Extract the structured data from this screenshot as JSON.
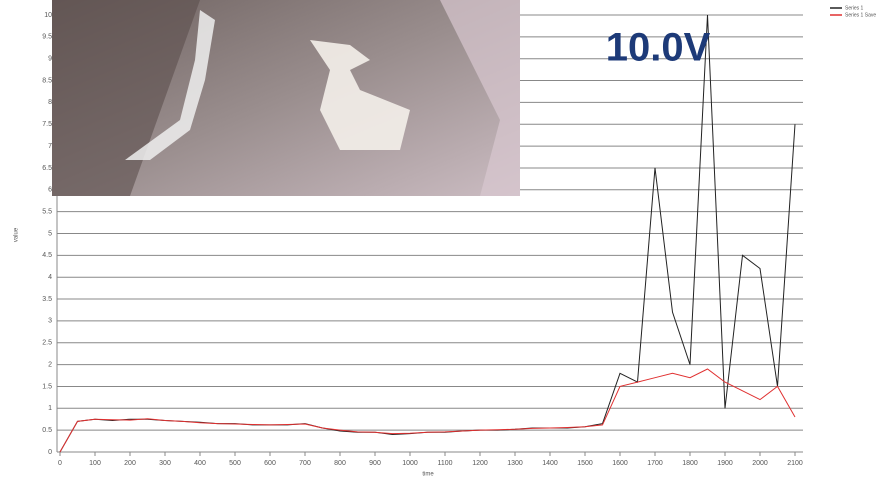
{
  "chart_data": {
    "type": "line",
    "annotation": "10.0V",
    "x_label": "time",
    "y_label": "value",
    "x": [
      0,
      50,
      100,
      150,
      200,
      250,
      300,
      350,
      400,
      450,
      500,
      550,
      600,
      650,
      700,
      750,
      800,
      850,
      900,
      950,
      1000,
      1050,
      1100,
      1150,
      1200,
      1250,
      1300,
      1350,
      1400,
      1450,
      1500,
      1550,
      1600,
      1650,
      1700,
      1750,
      1800,
      1850,
      1900,
      1950,
      2000,
      2050,
      2100
    ],
    "series": [
      {
        "name": "Series 1",
        "color": "#222222",
        "values": [
          0,
          0.7,
          0.75,
          0.72,
          0.75,
          0.75,
          0.72,
          0.7,
          0.68,
          0.65,
          0.65,
          0.62,
          0.62,
          0.62,
          0.65,
          0.55,
          0.48,
          0.45,
          0.45,
          0.4,
          0.42,
          0.45,
          0.45,
          0.48,
          0.5,
          0.5,
          0.52,
          0.55,
          0.55,
          0.55,
          0.58,
          0.65,
          1.8,
          1.6,
          6.5,
          3.2,
          2.0,
          10,
          1.0,
          4.5,
          4.2,
          1.5,
          7.5
        ]
      },
      {
        "name": "Series 1 Save",
        "color": "#e03030",
        "values": [
          0,
          0.7,
          0.75,
          0.74,
          0.73,
          0.76,
          0.72,
          0.7,
          0.67,
          0.65,
          0.64,
          0.63,
          0.62,
          0.63,
          0.64,
          0.55,
          0.5,
          0.46,
          0.45,
          0.42,
          0.43,
          0.45,
          0.46,
          0.48,
          0.5,
          0.51,
          0.52,
          0.54,
          0.55,
          0.56,
          0.58,
          0.62,
          1.5,
          1.6,
          1.7,
          1.8,
          1.7,
          1.9,
          1.6,
          1.4,
          1.2,
          1.5,
          0.8
        ]
      }
    ],
    "xlim": [
      0,
      2100
    ],
    "xticks": [
      0,
      100,
      200,
      300,
      400,
      500,
      600,
      700,
      800,
      900,
      1000,
      1100,
      1200,
      1300,
      1400,
      1500,
      1600,
      1700,
      1800,
      1900,
      2000,
      2100
    ],
    "ylim": [
      0,
      10
    ],
    "yticks": [
      0,
      0.5,
      1,
      1.5,
      2,
      2.5,
      3,
      3.5,
      4,
      4.5,
      5,
      5.5,
      6,
      6.5,
      7,
      7.5,
      8,
      8.5,
      9,
      9.5,
      10
    ],
    "grid": true
  }
}
